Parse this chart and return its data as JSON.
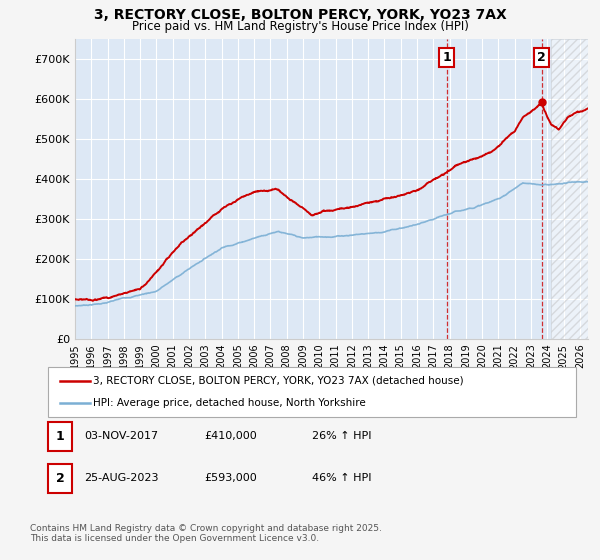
{
  "title_line1": "3, RECTORY CLOSE, BOLTON PERCY, YORK, YO23 7AX",
  "title_line2": "Price paid vs. HM Land Registry's House Price Index (HPI)",
  "ylabel_ticks": [
    "£0",
    "£100K",
    "£200K",
    "£300K",
    "£400K",
    "£500K",
    "£600K",
    "£700K"
  ],
  "ytick_values": [
    0,
    100000,
    200000,
    300000,
    400000,
    500000,
    600000,
    700000
  ],
  "ylim": [
    0,
    750000
  ],
  "xlim_start": 1995,
  "xlim_end": 2026.5,
  "hatch_start": 2024.25,
  "marker1_x": 2017.84,
  "marker1_y": 410000,
  "marker2_x": 2023.65,
  "marker2_y": 593000,
  "marker1_label": "1",
  "marker2_label": "2",
  "price_line_color": "#cc0000",
  "hpi_line_color": "#7bafd4",
  "dashed_line_color": "#cc0000",
  "plot_bg_color": "#dde8f5",
  "grid_color": "#ffffff",
  "fig_bg_color": "#f5f5f5",
  "legend_label1": "3, RECTORY CLOSE, BOLTON PERCY, YORK, YO23 7AX (detached house)",
  "legend_label2": "HPI: Average price, detached house, North Yorkshire",
  "annotation1_date": "03-NOV-2017",
  "annotation1_price": "£410,000",
  "annotation1_hpi": "26% ↑ HPI",
  "annotation2_date": "25-AUG-2023",
  "annotation2_price": "£593,000",
  "annotation2_hpi": "46% ↑ HPI",
  "footer": "Contains HM Land Registry data © Crown copyright and database right 2025.\nThis data is licensed under the Open Government Licence v3.0."
}
